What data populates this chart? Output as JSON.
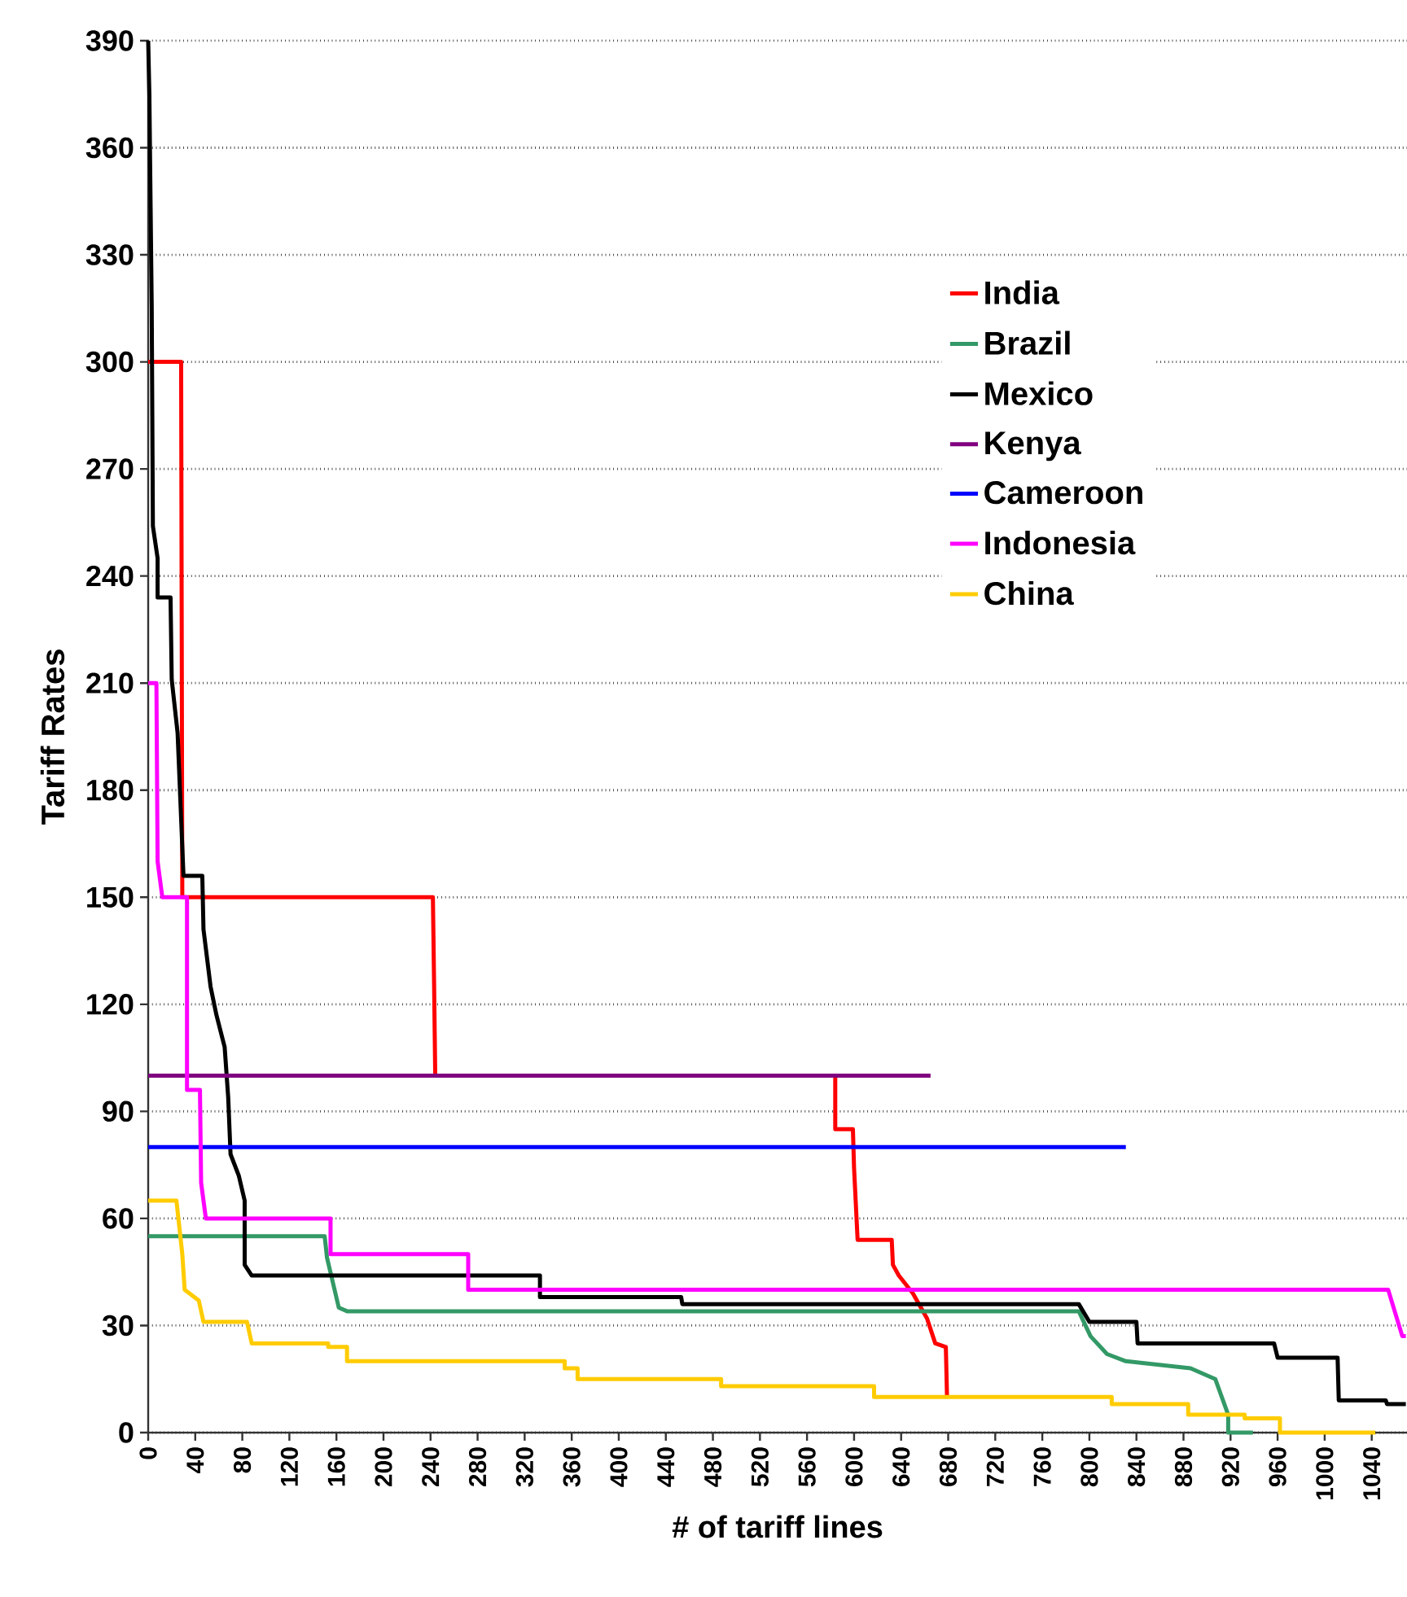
{
  "chart_data": {
    "type": "line",
    "xlabel": "# of tariff lines",
    "ylabel": "Tariff Rates",
    "xlim": [
      0,
      1070
    ],
    "ylim": [
      0,
      390
    ],
    "xticks": [
      0,
      40,
      80,
      120,
      160,
      200,
      240,
      280,
      320,
      360,
      400,
      440,
      480,
      520,
      560,
      600,
      640,
      680,
      720,
      760,
      800,
      840,
      880,
      920,
      960,
      1000,
      1040
    ],
    "yticks": [
      0,
      30,
      60,
      90,
      120,
      150,
      180,
      210,
      240,
      270,
      300,
      330,
      360,
      390
    ],
    "grid": "y",
    "legend": "top right",
    "line_style": "solid",
    "marker": "none",
    "series": [
      {
        "name": "India",
        "color": "#ff0000",
        "x": [
          0,
          28,
          29,
          242,
          243,
          244,
          584,
          584,
          599,
          600,
          603,
          632,
          633,
          638,
          650,
          662,
          669,
          678,
          679
        ],
        "values": [
          300,
          300,
          150,
          150,
          126,
          100,
          100,
          85,
          85,
          74,
          54,
          54,
          47,
          44,
          39,
          32,
          25,
          24,
          10
        ]
      },
      {
        "name": "Brazil",
        "color": "#339966",
        "x": [
          0,
          150,
          152,
          162,
          169,
          791,
          801,
          815,
          831,
          886,
          907,
          918,
          918,
          939
        ],
        "values": [
          55,
          55,
          49,
          35,
          34,
          34,
          27,
          22,
          20,
          18,
          15,
          5,
          0,
          0
        ]
      },
      {
        "name": "Mexico",
        "color": "#000000",
        "x": [
          0,
          1,
          3,
          4,
          8,
          8,
          19,
          20,
          25,
          30,
          46,
          47,
          53,
          58,
          65,
          68,
          70,
          77,
          82,
          82,
          88,
          333,
          333,
          453,
          454,
          791,
          800,
          840,
          841,
          957,
          960,
          1011,
          1012,
          1052,
          1053,
          1069
        ],
        "values": [
          390,
          375,
          315,
          254,
          245,
          234,
          234,
          211,
          196,
          156,
          156,
          141,
          125,
          117,
          108,
          94,
          78,
          72,
          65,
          47,
          44,
          44,
          38,
          38,
          36,
          36,
          31,
          31,
          25,
          25,
          21,
          21,
          9,
          9,
          8,
          8
        ]
      },
      {
        "name": "Kenya",
        "color": "#800080",
        "x": [
          0,
          665
        ],
        "values": [
          100,
          100
        ]
      },
      {
        "name": "Cameroon",
        "color": "#0000ff",
        "x": [
          0,
          831
        ],
        "values": [
          80,
          80
        ]
      },
      {
        "name": "Indonesia",
        "color": "#ff00ff",
        "x": [
          0,
          7,
          8,
          12,
          33,
          33,
          44,
          45,
          49,
          155,
          155,
          272,
          272,
          1054,
          1066,
          1069
        ],
        "values": [
          210,
          210,
          160,
          150,
          150,
          96,
          96,
          70,
          60,
          60,
          50,
          50,
          40,
          40,
          27,
          27
        ]
      },
      {
        "name": "China",
        "color": "#ffcc00",
        "x": [
          0,
          24,
          29,
          31,
          43,
          47,
          84,
          88,
          153,
          153,
          169,
          169,
          354,
          354,
          365,
          365,
          487,
          487,
          617,
          617,
          819,
          819,
          884,
          884,
          932,
          932,
          962,
          962,
          1043
        ],
        "values": [
          65,
          65,
          50,
          40,
          37,
          31,
          31,
          25,
          25,
          24,
          24,
          20,
          20,
          18,
          18,
          15,
          15,
          13,
          13,
          10,
          10,
          8,
          8,
          5,
          5,
          4,
          4,
          0,
          0
        ]
      }
    ]
  }
}
